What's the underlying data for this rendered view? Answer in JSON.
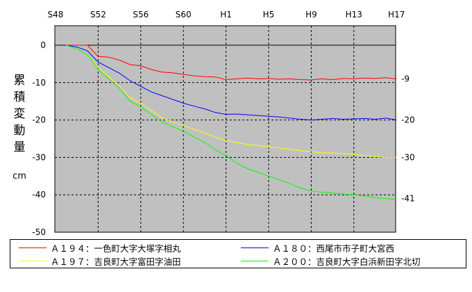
{
  "chart_data": {
    "type": "line",
    "ylabel_chars": [
      "累",
      "積",
      "変",
      "動",
      "量"
    ],
    "unit": "cm",
    "x_ticks": [
      "S48",
      "S52",
      "S56",
      "S60",
      "H1",
      "H5",
      "H9",
      "H13",
      "H17"
    ],
    "xlim": [
      1973,
      2005
    ],
    "ylim": [
      -50,
      0
    ],
    "y_ticks": [
      0,
      -10,
      -20,
      -30,
      -40,
      -50
    ],
    "grid": true,
    "grid_style": "dashed",
    "plot_background": "#c0c0c0",
    "legend_position": "bottom",
    "end_labels": [
      {
        "text": "-9",
        "value": -9
      },
      {
        "text": "-20",
        "value": -20
      },
      {
        "text": "-30",
        "value": -30
      },
      {
        "text": "-41",
        "value": -41
      }
    ],
    "series": [
      {
        "name": "Ａ１９４：一色町大字大塚字相丸",
        "color": "#ff0000",
        "points": [
          [
            1974,
            0
          ],
          [
            1975,
            0
          ],
          [
            1976,
            0
          ],
          [
            1976.5,
            -1.5
          ],
          [
            1977,
            -3
          ],
          [
            1978,
            -3.2
          ],
          [
            1979,
            -4
          ],
          [
            1980,
            -5.2
          ],
          [
            1981,
            -5.5
          ],
          [
            1982,
            -6.5
          ],
          [
            1983,
            -7.2
          ],
          [
            1984,
            -7.4
          ],
          [
            1985,
            -7.8
          ],
          [
            1986,
            -8.2
          ],
          [
            1987,
            -8.4
          ],
          [
            1988,
            -8.5
          ],
          [
            1989,
            -9.2
          ],
          [
            1990,
            -9
          ],
          [
            1991,
            -8.8
          ],
          [
            1992,
            -9
          ],
          [
            1993,
            -8.9
          ],
          [
            1994,
            -9.1
          ],
          [
            1995,
            -9
          ],
          [
            1996,
            -9.2
          ],
          [
            1997,
            -9.3
          ],
          [
            1998,
            -9
          ],
          [
            1999,
            -9.2
          ],
          [
            2000,
            -8.9
          ],
          [
            2001,
            -9
          ],
          [
            2002,
            -8.8
          ],
          [
            2003,
            -8.9
          ],
          [
            2004,
            -8.7
          ],
          [
            2005,
            -9
          ]
        ]
      },
      {
        "name": "Ａ１８０：西尾市市子町大宮西",
        "color": "#0000ff",
        "points": [
          [
            1974,
            0
          ],
          [
            1975,
            -0.5
          ],
          [
            1976,
            -1.5
          ],
          [
            1977,
            -4.5
          ],
          [
            1978,
            -6
          ],
          [
            1979,
            -7.5
          ],
          [
            1980,
            -9.5
          ],
          [
            1981,
            -11
          ],
          [
            1982,
            -12.5
          ],
          [
            1983,
            -13.5
          ],
          [
            1984,
            -14.5
          ],
          [
            1985,
            -15.5
          ],
          [
            1986,
            -16.3
          ],
          [
            1987,
            -17
          ],
          [
            1988,
            -18
          ],
          [
            1989,
            -18.5
          ],
          [
            1990,
            -18.4
          ],
          [
            1991,
            -18.6
          ],
          [
            1992,
            -18.8
          ],
          [
            1993,
            -19
          ],
          [
            1994,
            -19.2
          ],
          [
            1995,
            -19.5
          ],
          [
            1996,
            -19.8
          ],
          [
            1997,
            -20
          ],
          [
            1998,
            -19.8
          ],
          [
            1999,
            -19.6
          ],
          [
            2000,
            -19.8
          ],
          [
            2001,
            -19.7
          ],
          [
            2002,
            -19.6
          ],
          [
            2003,
            -19.8
          ],
          [
            2004,
            -19.5
          ],
          [
            2005,
            -20
          ]
        ]
      },
      {
        "name": "Ａ１９７：吉良町大字富田字油田",
        "color": "#ffff00",
        "points": [
          [
            1974,
            0
          ],
          [
            1975,
            -1
          ],
          [
            1976,
            -2.5
          ],
          [
            1977,
            -6
          ],
          [
            1978,
            -8.5
          ],
          [
            1979,
            -11
          ],
          [
            1980,
            -14
          ],
          [
            1981,
            -15.5
          ],
          [
            1982,
            -17.5
          ],
          [
            1983,
            -19.5
          ],
          [
            1984,
            -20.5
          ],
          [
            1985,
            -21.5
          ],
          [
            1986,
            -22.5
          ],
          [
            1987,
            -23.5
          ],
          [
            1988,
            -24.5
          ],
          [
            1989,
            -25.5
          ],
          [
            1990,
            -26
          ],
          [
            1991,
            -26.5
          ],
          [
            1992,
            -26.8
          ],
          [
            1993,
            -27.2
          ],
          [
            1994,
            -27.5
          ],
          [
            1995,
            -27.8
          ],
          [
            1996,
            -28.2
          ],
          [
            1997,
            -28.5
          ],
          [
            1998,
            -28.8
          ],
          [
            1999,
            -28.8
          ],
          [
            2000,
            -29
          ],
          [
            2001,
            -29.2
          ],
          [
            2002,
            -29.5
          ],
          [
            2003,
            -29.8
          ],
          [
            2004,
            -30
          ],
          [
            2005,
            -30
          ]
        ]
      },
      {
        "name": "Ａ２００：吉良町大字白浜新田字北切",
        "color": "#00ff00",
        "points": [
          [
            1974,
            0
          ],
          [
            1975,
            -1
          ],
          [
            1976,
            -2.5
          ],
          [
            1977,
            -6.5
          ],
          [
            1978,
            -9
          ],
          [
            1979,
            -11.5
          ],
          [
            1980,
            -15
          ],
          [
            1981,
            -16.5
          ],
          [
            1982,
            -18.5
          ],
          [
            1983,
            -20.5
          ],
          [
            1984,
            -21.8
          ],
          [
            1985,
            -23
          ],
          [
            1986,
            -24.5
          ],
          [
            1987,
            -26
          ],
          [
            1988,
            -28
          ],
          [
            1989,
            -29.5
          ],
          [
            1990,
            -31.5
          ],
          [
            1991,
            -33
          ],
          [
            1992,
            -34
          ],
          [
            1993,
            -35
          ],
          [
            1994,
            -36
          ],
          [
            1995,
            -37
          ],
          [
            1996,
            -38.2
          ],
          [
            1997,
            -39
          ],
          [
            1998,
            -39.3
          ],
          [
            1999,
            -39.5
          ],
          [
            2000,
            -39.8
          ],
          [
            2001,
            -40
          ],
          [
            2002,
            -40.3
          ],
          [
            2003,
            -40.8
          ],
          [
            2004,
            -41
          ],
          [
            2005,
            -41.2
          ]
        ]
      }
    ]
  }
}
